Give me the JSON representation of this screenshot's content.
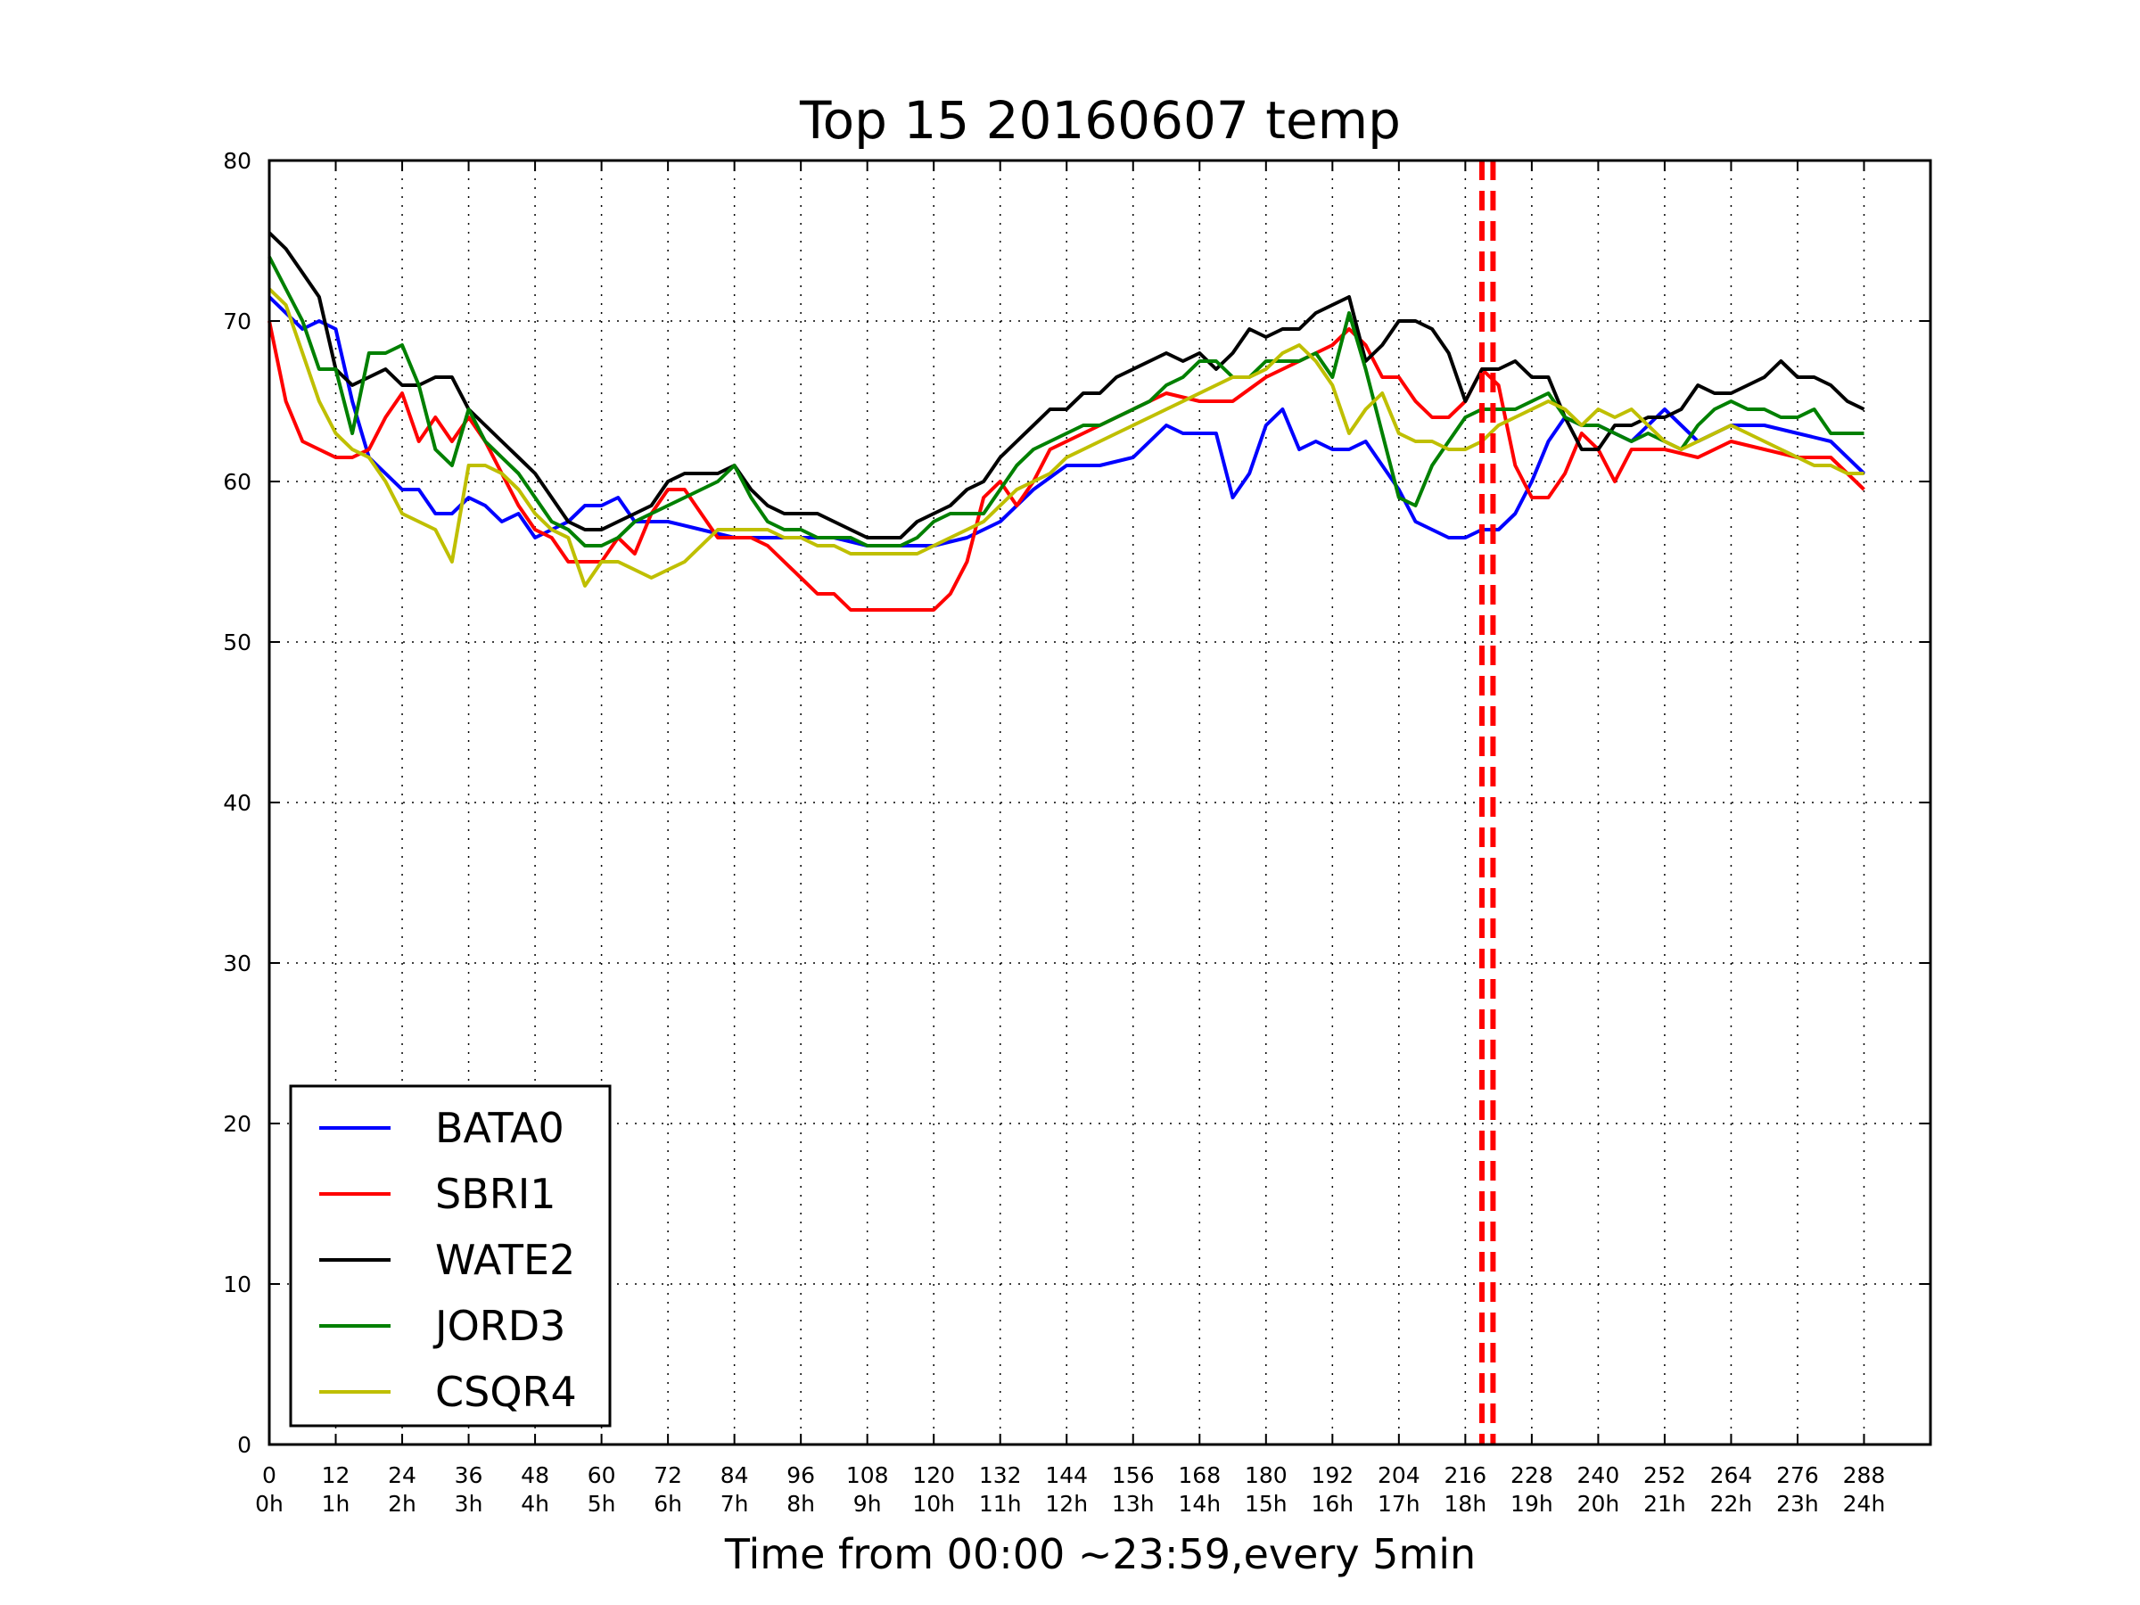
{
  "chart_data": {
    "type": "line",
    "title": "Top 15 20160607 temp",
    "xlabel": "Time from 00:00 ~23:59,every 5min",
    "ylabel": "",
    "xlim": [
      0,
      300
    ],
    "ylim": [
      0,
      80
    ],
    "grid": true,
    "legend_position": "lower-left",
    "x_ticks": [
      0,
      12,
      24,
      36,
      48,
      60,
      72,
      84,
      96,
      108,
      120,
      132,
      144,
      156,
      168,
      180,
      192,
      204,
      216,
      228,
      240,
      252,
      264,
      276,
      288
    ],
    "x_tick_labels_top": [
      "0",
      "12",
      "24",
      "36",
      "48",
      "60",
      "72",
      "84",
      "96",
      "108",
      "120",
      "132",
      "144",
      "156",
      "168",
      "180",
      "192",
      "204",
      "216",
      "228",
      "240",
      "252",
      "264",
      "276",
      "288"
    ],
    "x_tick_labels_bottom": [
      "0h",
      "1h",
      "2h",
      "3h",
      "4h",
      "5h",
      "6h",
      "7h",
      "8h",
      "9h",
      "10h",
      "11h",
      "12h",
      "13h",
      "14h",
      "15h",
      "16h",
      "17h",
      "18h",
      "19h",
      "20h",
      "21h",
      "22h",
      "23h",
      "24h"
    ],
    "y_ticks": [
      0,
      10,
      20,
      30,
      40,
      50,
      60,
      70,
      80
    ],
    "y_tick_labels": [
      "0",
      "10",
      "20",
      "30",
      "40",
      "50",
      "60",
      "70",
      "80"
    ],
    "vlines": [
      {
        "x": 219,
        "color": "#ff0000",
        "style": "dashed"
      },
      {
        "x": 221,
        "color": "#ff0000",
        "style": "dashed"
      }
    ],
    "series": [
      {
        "name": "BATA0",
        "color": "#0000ff",
        "x": [
          0,
          3,
          6,
          9,
          12,
          15,
          18,
          21,
          24,
          27,
          30,
          33,
          36,
          39,
          42,
          45,
          48,
          51,
          54,
          57,
          60,
          63,
          66,
          69,
          72,
          78,
          84,
          90,
          96,
          102,
          108,
          114,
          120,
          126,
          132,
          138,
          144,
          150,
          156,
          159,
          162,
          165,
          168,
          171,
          174,
          177,
          180,
          183,
          186,
          189,
          192,
          195,
          198,
          201,
          204,
          207,
          210,
          213,
          216,
          219,
          222,
          225,
          228,
          231,
          234,
          237,
          240,
          246,
          252,
          258,
          264,
          270,
          276,
          282,
          288
        ],
        "y": [
          71.5,
          70.5,
          69.5,
          70,
          69.5,
          65,
          61.5,
          60.5,
          59.5,
          59.5,
          58,
          58,
          59,
          58.5,
          57.5,
          58,
          56.5,
          57,
          57.5,
          58.5,
          58.5,
          59,
          57.5,
          57.5,
          57.5,
          57,
          56.5,
          56.5,
          56.5,
          56.5,
          56,
          56,
          56,
          56.5,
          57.5,
          59.5,
          61,
          61,
          61.5,
          62.5,
          63.5,
          63,
          63,
          63,
          59,
          60.5,
          63.5,
          64.5,
          62,
          62.5,
          62,
          62,
          62.5,
          61,
          59.5,
          57.5,
          57,
          56.5,
          56.5,
          57,
          57,
          58,
          60,
          62.5,
          64,
          63.5,
          63.5,
          62.5,
          64.5,
          62.5,
          63.5,
          63.5,
          63,
          62.5,
          60.5
        ]
      },
      {
        "name": "SBRI1",
        "color": "#ff0000",
        "x": [
          0,
          3,
          6,
          9,
          12,
          15,
          18,
          21,
          24,
          27,
          30,
          33,
          36,
          39,
          42,
          45,
          48,
          51,
          54,
          57,
          60,
          63,
          66,
          69,
          72,
          75,
          78,
          81,
          84,
          87,
          90,
          93,
          96,
          99,
          102,
          105,
          108,
          111,
          114,
          117,
          120,
          123,
          126,
          129,
          132,
          135,
          138,
          141,
          144,
          150,
          156,
          162,
          168,
          174,
          180,
          186,
          192,
          195,
          198,
          201,
          204,
          207,
          210,
          213,
          216,
          219,
          222,
          225,
          228,
          231,
          234,
          237,
          240,
          243,
          246,
          252,
          258,
          264,
          270,
          276,
          282,
          288
        ],
        "y": [
          70,
          65,
          62.5,
          62,
          61.5,
          61.5,
          62,
          64,
          65.5,
          62.5,
          64,
          62.5,
          64,
          62.5,
          60.5,
          58.5,
          57,
          56.5,
          55,
          55,
          55,
          56.5,
          55.5,
          58,
          59.5,
          59.5,
          58,
          56.5,
          56.5,
          56.5,
          56,
          55,
          54,
          53,
          53,
          52,
          52,
          52,
          52,
          52,
          52,
          53,
          55,
          59,
          60,
          58.5,
          60,
          62,
          62.5,
          63.5,
          64.5,
          65.5,
          65,
          65,
          66.5,
          67.5,
          68.5,
          69.5,
          68.5,
          66.5,
          66.5,
          65,
          64,
          64,
          65,
          67,
          66,
          61,
          59,
          59,
          60.5,
          63,
          62,
          60,
          62,
          62,
          61.5,
          62.5,
          62,
          61.5,
          61.5,
          59.5
        ]
      },
      {
        "name": "WATE2",
        "color": "#000000",
        "x": [
          0,
          3,
          6,
          9,
          12,
          15,
          18,
          21,
          24,
          27,
          30,
          33,
          36,
          39,
          42,
          45,
          48,
          51,
          54,
          57,
          60,
          63,
          66,
          69,
          72,
          75,
          78,
          81,
          84,
          87,
          90,
          93,
          96,
          99,
          102,
          105,
          108,
          111,
          114,
          117,
          120,
          123,
          126,
          129,
          132,
          135,
          138,
          141,
          144,
          147,
          150,
          153,
          156,
          159,
          162,
          165,
          168,
          171,
          174,
          177,
          180,
          183,
          186,
          189,
          192,
          195,
          198,
          201,
          204,
          207,
          210,
          213,
          216,
          219,
          222,
          225,
          228,
          231,
          234,
          237,
          240,
          243,
          246,
          249,
          252,
          255,
          258,
          261,
          264,
          267,
          270,
          273,
          276,
          279,
          282,
          285,
          288
        ],
        "y": [
          75.5,
          74.5,
          73,
          71.5,
          67,
          66,
          66.5,
          67,
          66,
          66,
          66.5,
          66.5,
          64.5,
          63.5,
          62.5,
          61.5,
          60.5,
          59,
          57.5,
          57,
          57,
          57.5,
          58,
          58.5,
          60,
          60.5,
          60.5,
          60.5,
          61,
          59.5,
          58.5,
          58,
          58,
          58,
          57.5,
          57,
          56.5,
          56.5,
          56.5,
          57.5,
          58,
          58.5,
          59.5,
          60,
          61.5,
          62.5,
          63.5,
          64.5,
          64.5,
          65.5,
          65.5,
          66.5,
          67,
          67.5,
          68,
          67.5,
          68,
          67,
          68,
          69.5,
          69,
          69.5,
          69.5,
          70.5,
          71,
          71.5,
          67.5,
          68.5,
          70,
          70,
          69.5,
          68,
          65,
          67,
          67,
          67.5,
          66.5,
          66.5,
          64,
          62,
          62,
          63.5,
          63.5,
          64,
          64,
          64.5,
          66,
          65.5,
          65.5,
          66,
          66.5,
          67.5,
          66.5,
          66.5,
          66,
          65,
          64.5
        ]
      },
      {
        "name": "JORD3",
        "color": "#008000",
        "x": [
          0,
          3,
          6,
          9,
          12,
          15,
          18,
          21,
          24,
          27,
          30,
          33,
          36,
          39,
          42,
          45,
          48,
          51,
          54,
          57,
          60,
          63,
          66,
          69,
          72,
          75,
          78,
          81,
          84,
          87,
          90,
          93,
          96,
          99,
          102,
          105,
          108,
          111,
          114,
          117,
          120,
          123,
          126,
          129,
          132,
          135,
          138,
          141,
          144,
          147,
          150,
          153,
          156,
          159,
          162,
          165,
          168,
          171,
          174,
          177,
          180,
          183,
          186,
          189,
          192,
          195,
          198,
          201,
          204,
          207,
          210,
          213,
          216,
          219,
          222,
          225,
          228,
          231,
          234,
          237,
          240,
          243,
          246,
          249,
          252,
          255,
          258,
          261,
          264,
          267,
          270,
          273,
          276,
          279,
          282,
          285,
          288
        ],
        "y": [
          74,
          72,
          70,
          67,
          67,
          63,
          68,
          68,
          68.5,
          66,
          62,
          61,
          64.5,
          62.5,
          61.5,
          60.5,
          59,
          57.5,
          57,
          56,
          56,
          56.5,
          57.5,
          58,
          58.5,
          59,
          59.5,
          60,
          61,
          59,
          57.5,
          57,
          57,
          56.5,
          56.5,
          56.5,
          56,
          56,
          56,
          56.5,
          57.5,
          58,
          58,
          58,
          59.5,
          61,
          62,
          62.5,
          63,
          63.5,
          63.5,
          64,
          64.5,
          65,
          66,
          66.5,
          67.5,
          67.5,
          66.5,
          66.5,
          67.5,
          67.5,
          67.5,
          68,
          66.5,
          70.5,
          67,
          63,
          59,
          58.5,
          61,
          62.5,
          64,
          64.5,
          64.5,
          64.5,
          65,
          65.5,
          64,
          63.5,
          63.5,
          63,
          62.5,
          63,
          62.5,
          62,
          63.5,
          64.5,
          65,
          64.5,
          64.5,
          64,
          64,
          64.5,
          63,
          63,
          63
        ]
      },
      {
        "name": "CSQR4",
        "color": "#bfbf00",
        "x": [
          0,
          3,
          6,
          9,
          12,
          15,
          18,
          21,
          24,
          27,
          30,
          33,
          36,
          39,
          42,
          45,
          48,
          51,
          54,
          57,
          60,
          63,
          66,
          69,
          72,
          75,
          78,
          81,
          84,
          87,
          90,
          93,
          96,
          99,
          102,
          105,
          108,
          111,
          114,
          117,
          120,
          123,
          126,
          129,
          132,
          135,
          138,
          141,
          144,
          147,
          150,
          153,
          156,
          159,
          162,
          165,
          168,
          171,
          174,
          177,
          180,
          183,
          186,
          189,
          192,
          195,
          198,
          201,
          204,
          207,
          210,
          213,
          216,
          219,
          222,
          225,
          228,
          231,
          234,
          237,
          240,
          243,
          246,
          249,
          252,
          255,
          258,
          261,
          264,
          267,
          270,
          273,
          276,
          279,
          282,
          285,
          288
        ],
        "y": [
          72,
          71,
          68,
          65,
          63,
          62,
          61.5,
          60,
          58,
          57.5,
          57,
          55,
          61,
          61,
          60.5,
          59.5,
          58,
          57,
          56.5,
          53.5,
          55,
          55,
          54.5,
          54,
          54.5,
          55,
          56,
          57,
          57,
          57,
          57,
          56.5,
          56.5,
          56,
          56,
          55.5,
          55.5,
          55.5,
          55.5,
          55.5,
          56,
          56.5,
          57,
          57.5,
          58.5,
          59.5,
          60,
          60.5,
          61.5,
          62,
          62.5,
          63,
          63.5,
          64,
          64.5,
          65,
          65.5,
          66,
          66.5,
          66.5,
          67,
          68,
          68.5,
          67.5,
          66,
          63,
          64.5,
          65.5,
          63,
          62.5,
          62.5,
          62,
          62,
          62.5,
          63.5,
          64,
          64.5,
          65,
          64.5,
          63.5,
          64.5,
          64,
          64.5,
          63.5,
          62.5,
          62,
          62.5,
          63,
          63.5,
          63,
          62.5,
          62,
          61.5,
          61,
          61,
          60.5,
          60.5
        ]
      }
    ]
  }
}
